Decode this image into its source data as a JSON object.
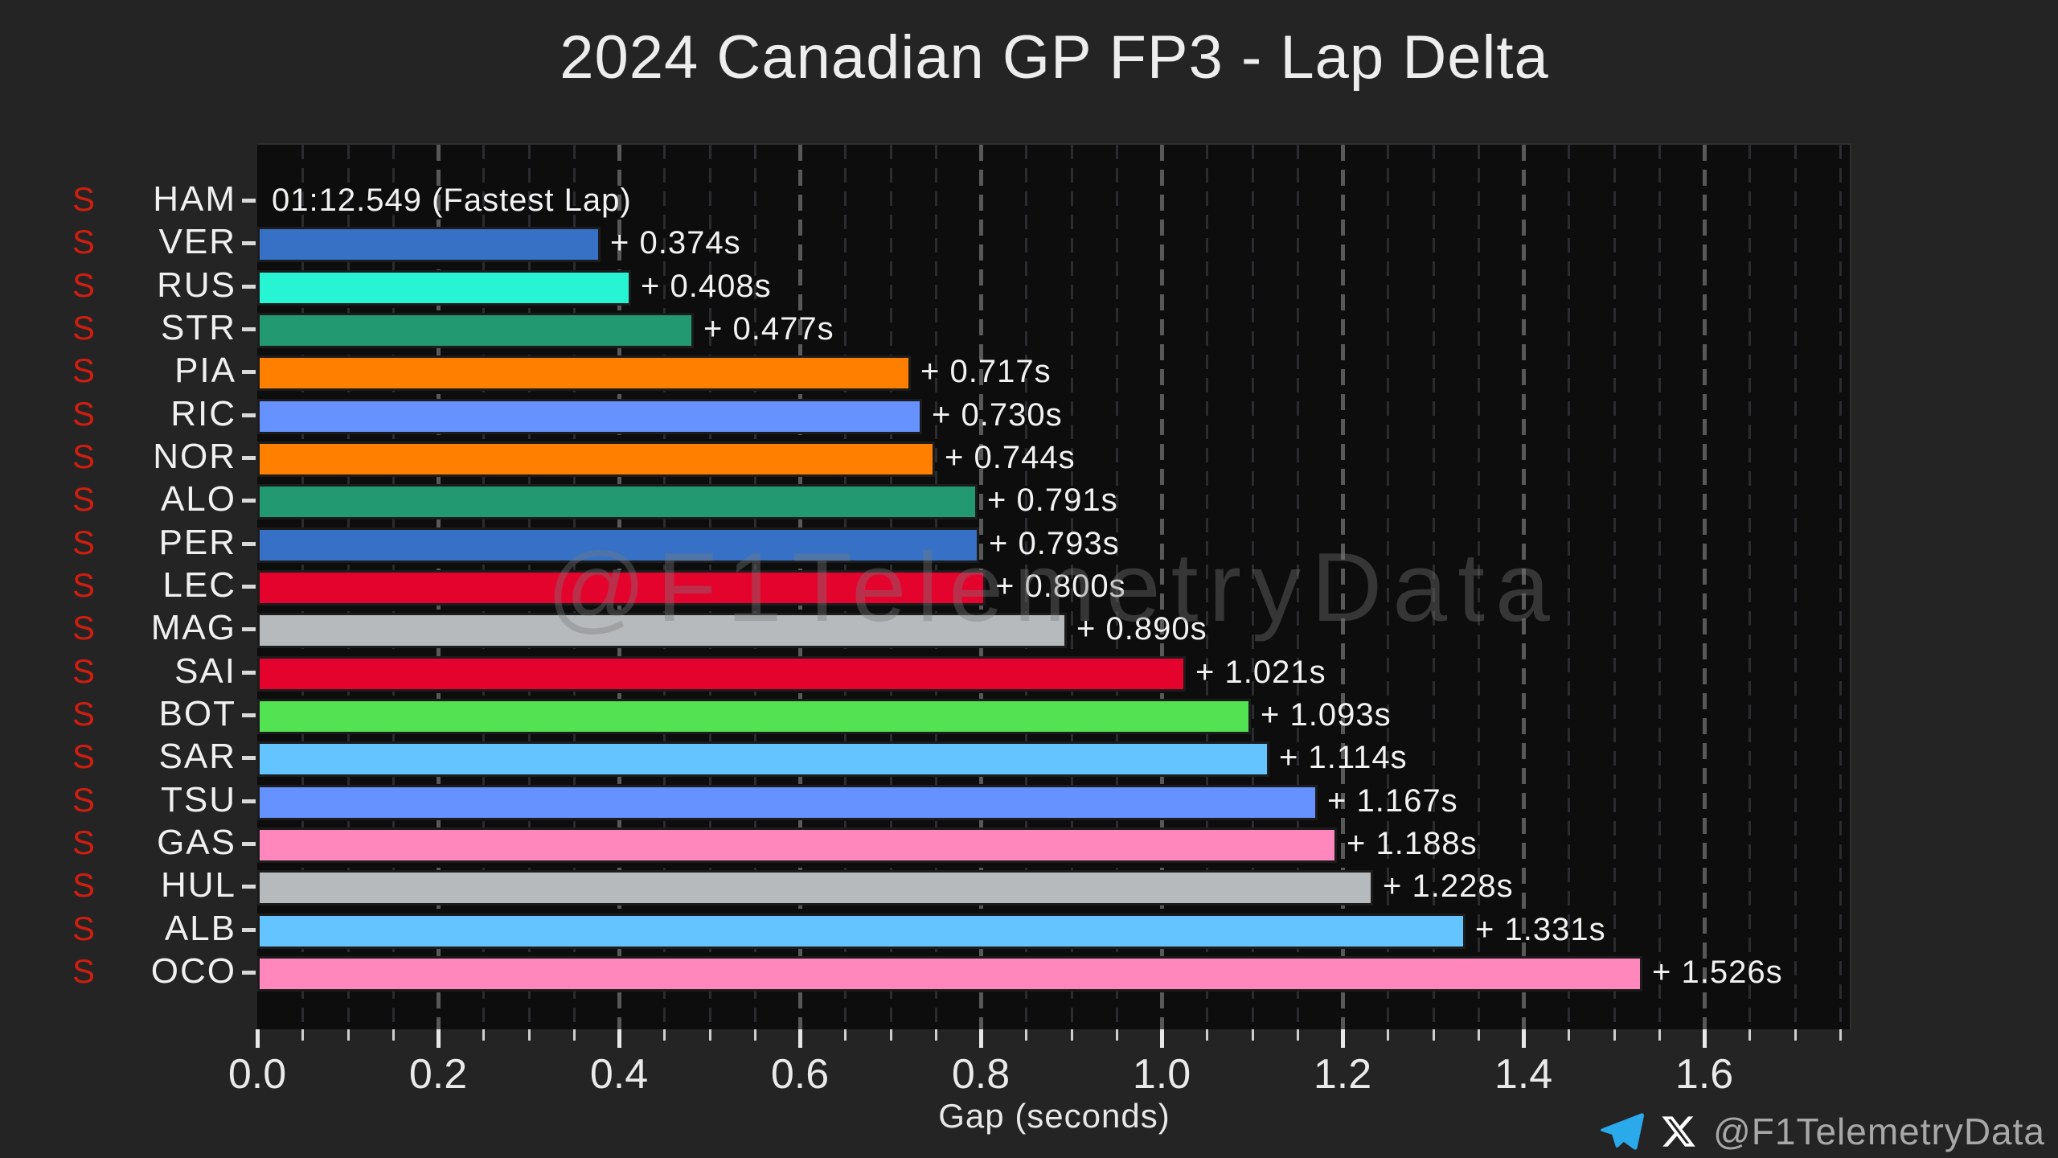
{
  "page": {
    "title": "2024 Canadian GP FP3 - Lap Delta",
    "watermark": "@F1TelemetryData",
    "footer": {
      "telegram_icon": "telegram-paper-plane-icon",
      "x_icon": "x-twitter-logo-icon",
      "handle": "@F1TelemetryData"
    }
  },
  "chart_data": {
    "type": "bar",
    "orientation": "horizontal",
    "title": "2024 Canadian GP FP3 - Lap Delta",
    "xlabel": "Gap (seconds)",
    "xlim": [
      0,
      1.763
    ],
    "grid": "vertical dashed, major every 0.2s (bright), minor every 0.05s (faint)",
    "x_major_tick_labels": [
      "0.0",
      "0.2",
      "0.4",
      "0.6",
      "0.8",
      "1.0",
      "1.2",
      "1.4",
      "1.6"
    ],
    "x_major_step": 0.2,
    "x_minor_step": 0.05,
    "fastest_lap": {
      "driver": "HAM",
      "label": "01:12.549 (Fastest Lap)"
    },
    "categories": [
      "HAM",
      "VER",
      "RUS",
      "STR",
      "PIA",
      "RIC",
      "NOR",
      "ALO",
      "PER",
      "LEC",
      "MAG",
      "SAI",
      "BOT",
      "SAR",
      "TSU",
      "GAS",
      "HUL",
      "ALB",
      "OCO"
    ],
    "values": [
      0.0,
      0.374,
      0.408,
      0.477,
      0.717,
      0.73,
      0.744,
      0.791,
      0.793,
      0.8,
      0.89,
      1.021,
      1.093,
      1.114,
      1.167,
      1.188,
      1.228,
      1.331,
      1.526
    ],
    "rows": [
      {
        "driver": "HAM",
        "tyre": "S",
        "gap_s": 0.0,
        "label": "01:12.549 (Fastest Lap)",
        "color": "#27F4D2"
      },
      {
        "driver": "VER",
        "tyre": "S",
        "gap_s": 0.374,
        "label": "+ 0.374s",
        "color": "#3671C6"
      },
      {
        "driver": "RUS",
        "tyre": "S",
        "gap_s": 0.408,
        "label": "+ 0.408s",
        "color": "#27F4D2"
      },
      {
        "driver": "STR",
        "tyre": "S",
        "gap_s": 0.477,
        "label": "+ 0.477s",
        "color": "#229971"
      },
      {
        "driver": "PIA",
        "tyre": "S",
        "gap_s": 0.717,
        "label": "+ 0.717s",
        "color": "#FF8000"
      },
      {
        "driver": "RIC",
        "tyre": "S",
        "gap_s": 0.73,
        "label": "+ 0.730s",
        "color": "#6692FF"
      },
      {
        "driver": "NOR",
        "tyre": "S",
        "gap_s": 0.744,
        "label": "+ 0.744s",
        "color": "#FF8000"
      },
      {
        "driver": "ALO",
        "tyre": "S",
        "gap_s": 0.791,
        "label": "+ 0.791s",
        "color": "#229971"
      },
      {
        "driver": "PER",
        "tyre": "S",
        "gap_s": 0.793,
        "label": "+ 0.793s",
        "color": "#3671C6"
      },
      {
        "driver": "LEC",
        "tyre": "S",
        "gap_s": 0.8,
        "label": "+ 0.800s",
        "color": "#E3032C"
      },
      {
        "driver": "MAG",
        "tyre": "S",
        "gap_s": 0.89,
        "label": "+ 0.890s",
        "color": "#B6BABD"
      },
      {
        "driver": "SAI",
        "tyre": "S",
        "gap_s": 1.021,
        "label": "+ 1.021s",
        "color": "#E3032C"
      },
      {
        "driver": "BOT",
        "tyre": "S",
        "gap_s": 1.093,
        "label": "+ 1.093s",
        "color": "#52E252"
      },
      {
        "driver": "SAR",
        "tyre": "S",
        "gap_s": 1.114,
        "label": "+ 1.114s",
        "color": "#64C4FF"
      },
      {
        "driver": "TSU",
        "tyre": "S",
        "gap_s": 1.167,
        "label": "+ 1.167s",
        "color": "#6692FF"
      },
      {
        "driver": "GAS",
        "tyre": "S",
        "gap_s": 1.188,
        "label": "+ 1.188s",
        "color": "#FF87BC"
      },
      {
        "driver": "HUL",
        "tyre": "S",
        "gap_s": 1.228,
        "label": "+ 1.228s",
        "color": "#B6BABD"
      },
      {
        "driver": "ALB",
        "tyre": "S",
        "gap_s": 1.331,
        "label": "+ 1.331s",
        "color": "#64C4FF"
      },
      {
        "driver": "OCO",
        "tyre": "S",
        "gap_s": 1.526,
        "label": "+ 1.526s",
        "color": "#FF87BC"
      }
    ]
  },
  "style": {
    "figure_bg": "#242424",
    "plot_bg": "#0D0D0D",
    "grid_major": "#585858",
    "grid_minor": "#2B2B30",
    "text": "#EDEDED",
    "tyre_soft_red": "#CE1E10",
    "bar_edge": "#1C1C1C",
    "footer_text": "#A8A8A8",
    "telegram_blue": "#2AA9EB"
  }
}
